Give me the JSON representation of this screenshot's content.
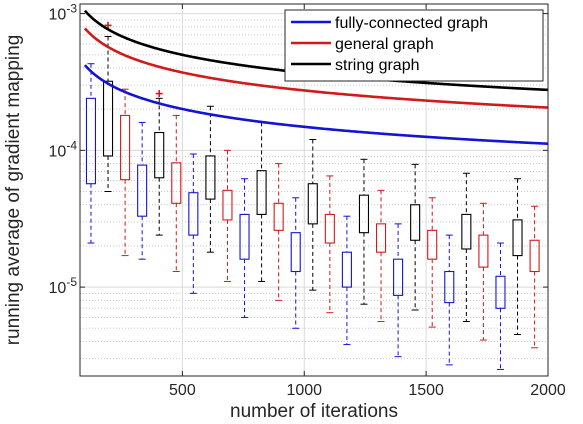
{
  "chart_data": {
    "type": "line",
    "xlabel": "number of iterations",
    "ylabel": "running average of gradient mapping",
    "xlim": [
      80,
      2000
    ],
    "ylim_log10": [
      -5.65,
      -2.93
    ],
    "yscale": "log",
    "grid": true,
    "legend_position": "top-right",
    "x_ticks": [
      500,
      1000,
      1500,
      2000
    ],
    "x_tick_labels": [
      "500",
      "1000",
      "1500",
      "2000"
    ],
    "y_ticks_log10": [
      -5,
      -4,
      -3
    ],
    "y_tick_labels": [
      {
        "base": "10",
        "exp": "-5"
      },
      {
        "base": "10",
        "exp": "-4"
      },
      {
        "base": "10",
        "exp": "-3"
      }
    ],
    "series": [
      {
        "name": "fully-connected graph",
        "color": "#1414d6",
        "curve": {
          "x0": 100,
          "y0": 0.00042,
          "k": 2.3e-05
        },
        "boxes": [
          {
            "x": 125,
            "whisk_lo": 2.1e-05,
            "q1": 5.7e-05,
            "q3": 0.00024,
            "whisk_hi": 0.00043
          },
          {
            "x": 335,
            "whisk_lo": 1.6e-05,
            "q1": 3.3e-05,
            "q3": 7.8e-05,
            "whisk_hi": 0.00016
          },
          {
            "x": 545,
            "whisk_lo": 9e-06,
            "q1": 2.4e-05,
            "q3": 4.9e-05,
            "whisk_hi": 9.4e-05
          },
          {
            "x": 755,
            "whisk_lo": 6e-06,
            "q1": 1.6e-05,
            "q3": 3.4e-05,
            "whisk_hi": 6.2e-05
          },
          {
            "x": 965,
            "whisk_lo": 5e-06,
            "q1": 1.3e-05,
            "q3": 2.5e-05,
            "whisk_hi": 4.5e-05
          },
          {
            "x": 1175,
            "whisk_lo": 3.8e-06,
            "q1": 1e-05,
            "q3": 1.8e-05,
            "whisk_hi": 3.3e-05
          },
          {
            "x": 1385,
            "whisk_lo": 3.1e-06,
            "q1": 8.7e-06,
            "q3": 1.6e-05,
            "whisk_hi": 2.9e-05
          },
          {
            "x": 1595,
            "whisk_lo": 2.7e-06,
            "q1": 7.7e-06,
            "q3": 1.3e-05,
            "whisk_hi": 2.4e-05
          },
          {
            "x": 1805,
            "whisk_lo": 2.5e-06,
            "q1": 7e-06,
            "q3": 1.2e-05,
            "whisk_hi": 2.1e-05
          }
        ],
        "outliers": []
      },
      {
        "name": "general graph",
        "color": "#d11a1a",
        "curve": {
          "x0": 100,
          "y0": 0.00078,
          "k": 4e-05
        },
        "boxes": [
          {
            "x": 265,
            "whisk_lo": 1.7e-05,
            "q1": 6.1e-05,
            "q3": 0.00018,
            "whisk_hi": 0.00028
          },
          {
            "x": 475,
            "whisk_lo": 1.3e-05,
            "q1": 4.1e-05,
            "q3": 8.1e-05,
            "whisk_hi": 0.00018
          },
          {
            "x": 685,
            "whisk_lo": 1.1e-05,
            "q1": 3.1e-05,
            "q3": 5.1e-05,
            "whisk_hi": 0.0001
          },
          {
            "x": 895,
            "whisk_lo": 8e-06,
            "q1": 2.6e-05,
            "q3": 4.1e-05,
            "whisk_hi": 8e-05
          },
          {
            "x": 1105,
            "whisk_lo": 6.5e-06,
            "q1": 2.1e-05,
            "q3": 3.4e-05,
            "whisk_hi": 6.5e-05
          },
          {
            "x": 1315,
            "whisk_lo": 5.6e-06,
            "q1": 1.8e-05,
            "q3": 2.9e-05,
            "whisk_hi": 5.1e-05
          },
          {
            "x": 1525,
            "whisk_lo": 5.1e-06,
            "q1": 1.6e-05,
            "q3": 2.6e-05,
            "whisk_hi": 4.5e-05
          },
          {
            "x": 1735,
            "whisk_lo": 4.1e-06,
            "q1": 1.4e-05,
            "q3": 2.4e-05,
            "whisk_hi": 4.1e-05
          },
          {
            "x": 1945,
            "whisk_lo": 3.6e-06,
            "q1": 1.3e-05,
            "q3": 2.2e-05,
            "whisk_hi": 3.9e-05
          }
        ],
        "outliers": [
          {
            "x": 195,
            "y": 0.00082
          },
          {
            "x": 405,
            "y": 0.00026
          }
        ]
      },
      {
        "name": "string graph",
        "color": "#000000",
        "curve": {
          "x0": 100,
          "y0": 0.00105,
          "k": 5.4e-05
        },
        "boxes": [
          {
            "x": 195,
            "whisk_lo": 5e-05,
            "q1": 9.1e-05,
            "q3": 0.00032,
            "whisk_hi": 0.00068
          },
          {
            "x": 405,
            "whisk_lo": 2.4e-05,
            "q1": 6.3e-05,
            "q3": 0.000135,
            "whisk_hi": 0.00024
          },
          {
            "x": 615,
            "whisk_lo": 1.8e-05,
            "q1": 4.4e-05,
            "q3": 9.1e-05,
            "whisk_hi": 0.00021
          },
          {
            "x": 825,
            "whisk_lo": 1.1e-05,
            "q1": 3.4e-05,
            "q3": 7.1e-05,
            "whisk_hi": 0.00016
          },
          {
            "x": 1035,
            "whisk_lo": 9.5e-06,
            "q1": 2.9e-05,
            "q3": 5.7e-05,
            "whisk_hi": 0.00012
          },
          {
            "x": 1245,
            "whisk_lo": 7.5e-06,
            "q1": 2.5e-05,
            "q3": 4.7e-05,
            "whisk_hi": 8.6e-05
          },
          {
            "x": 1455,
            "whisk_lo": 6.8e-06,
            "q1": 2.2e-05,
            "q3": 4e-05,
            "whisk_hi": 7.9e-05
          },
          {
            "x": 1665,
            "whisk_lo": 5.6e-06,
            "q1": 1.9e-05,
            "q3": 3.4e-05,
            "whisk_hi": 6.8e-05
          },
          {
            "x": 1875,
            "whisk_lo": 4.5e-06,
            "q1": 1.7e-05,
            "q3": 3.1e-05,
            "whisk_hi": 6.2e-05
          }
        ],
        "outliers": []
      }
    ]
  }
}
